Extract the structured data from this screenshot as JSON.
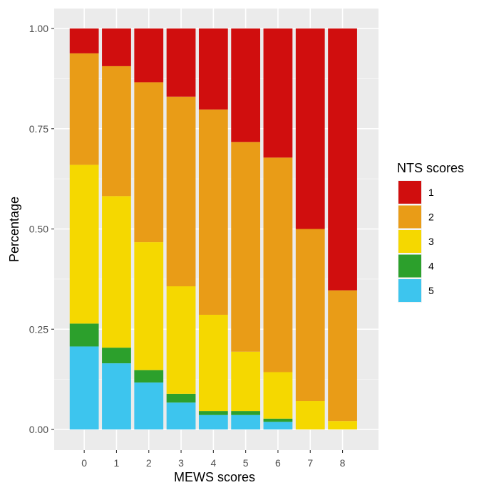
{
  "chart_data": {
    "type": "bar",
    "stacked": true,
    "xlabel": "MEWS scores",
    "ylabel": "Percentage",
    "categories": [
      "0",
      "1",
      "2",
      "3",
      "4",
      "5",
      "6",
      "7",
      "8"
    ],
    "ylim": [
      0,
      1
    ],
    "yticks": [
      "0.00",
      "0.25",
      "0.50",
      "0.75",
      "1.00"
    ],
    "grid": true,
    "legend": {
      "title": "NTS scores",
      "position": "right"
    },
    "series": [
      {
        "name": "5",
        "color": "#3DC5EE",
        "values": [
          0.207,
          0.165,
          0.117,
          0.067,
          0.036,
          0.036,
          0.019,
          0.0,
          0.0
        ]
      },
      {
        "name": "4",
        "color": "#2CA02C",
        "values": [
          0.057,
          0.039,
          0.031,
          0.022,
          0.01,
          0.01,
          0.008,
          0.0,
          0.0
        ]
      },
      {
        "name": "3",
        "color": "#F5D800",
        "values": [
          0.396,
          0.378,
          0.319,
          0.268,
          0.24,
          0.148,
          0.116,
          0.071,
          0.021
        ]
      },
      {
        "name": "2",
        "color": "#E99C17",
        "values": [
          0.278,
          0.324,
          0.399,
          0.473,
          0.512,
          0.523,
          0.535,
          0.429,
          0.326
        ]
      },
      {
        "name": "1",
        "color": "#D00E0E",
        "values": [
          0.062,
          0.094,
          0.134,
          0.17,
          0.202,
          0.283,
          0.322,
          0.5,
          0.653
        ]
      }
    ],
    "legend_order": [
      "1",
      "2",
      "3",
      "4",
      "5"
    ]
  }
}
